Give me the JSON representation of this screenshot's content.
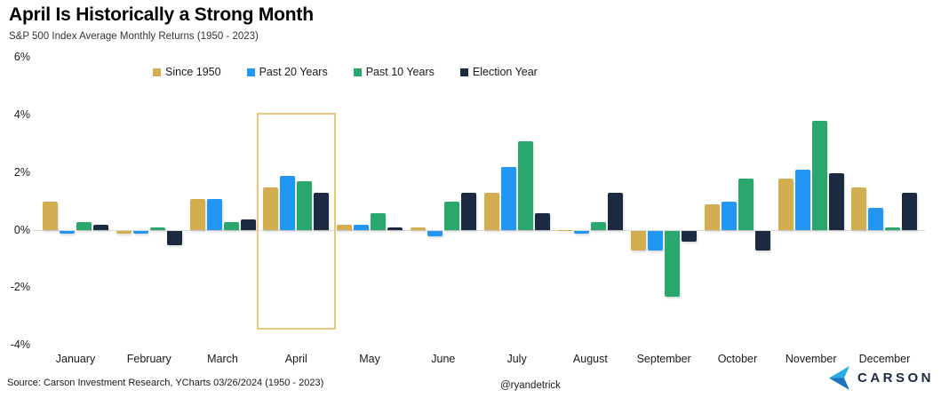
{
  "header": {
    "title": "April Is Historically a Strong Month",
    "subtitle": "S&P 500 Index Average Monthly Returns (1950 - 2023)"
  },
  "chart_data": {
    "type": "bar",
    "title": "April Is Historically a Strong Month",
    "subtitle": "S&P 500 Index Average Monthly Returns (1950 - 2023)",
    "categories": [
      "January",
      "February",
      "March",
      "April",
      "May",
      "June",
      "July",
      "August",
      "September",
      "October",
      "November",
      "December"
    ],
    "series": [
      {
        "name": "Since 1950",
        "color": "#d2ae50",
        "values": [
          1.0,
          -0.1,
          1.1,
          1.5,
          0.2,
          0.1,
          1.3,
          0.0,
          -0.7,
          0.9,
          1.8,
          1.5
        ]
      },
      {
        "name": "Past 20 Years",
        "color": "#2196f3",
        "values": [
          -0.1,
          -0.1,
          1.1,
          1.9,
          0.2,
          -0.2,
          2.2,
          -0.1,
          -0.7,
          1.0,
          2.1,
          0.8
        ]
      },
      {
        "name": "Past 10 Years",
        "color": "#2aa76d",
        "values": [
          0.3,
          0.1,
          0.3,
          1.7,
          0.6,
          1.0,
          3.1,
          0.3,
          -2.3,
          1.8,
          3.8,
          0.1
        ]
      },
      {
        "name": "Election Year",
        "color": "#1b2a41",
        "values": [
          0.2,
          -0.5,
          0.4,
          1.3,
          0.1,
          1.3,
          0.6,
          1.3,
          -0.4,
          -0.7,
          2.0,
          1.3
        ]
      }
    ],
    "ylim": [
      -4,
      6
    ],
    "yticks": [
      {
        "value": 6,
        "label": "6%"
      },
      {
        "value": 4,
        "label": "4%"
      },
      {
        "value": 2,
        "label": "2%"
      },
      {
        "value": 0,
        "label": "0%"
      },
      {
        "value": -2,
        "label": "-2%"
      },
      {
        "value": -4,
        "label": "-4%"
      }
    ],
    "grid": "zero-line-only",
    "legend_position": "top",
    "highlighted_category": "April",
    "highlight_color": "#e9c87e",
    "unit": "%"
  },
  "footer": {
    "source": "Source: Carson Investment Research, YCharts 03/26/2024 (1950 - 2023)",
    "handle": "@ryandetrick",
    "brand": "CARSON"
  }
}
